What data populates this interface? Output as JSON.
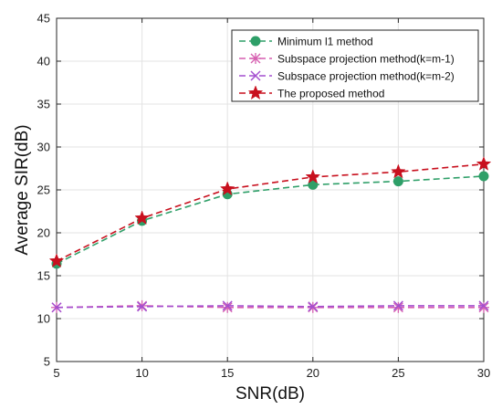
{
  "chart_data": {
    "type": "line",
    "title": "",
    "xlabel": "SNR(dB)",
    "ylabel": "Average SIR(dB)",
    "xlim": [
      5,
      30
    ],
    "ylim": [
      5,
      45
    ],
    "xticks": [
      5,
      10,
      15,
      20,
      25,
      30
    ],
    "yticks": [
      5,
      10,
      15,
      20,
      25,
      30,
      35,
      40,
      45
    ],
    "grid": true,
    "legend_position": "top-right",
    "x": [
      5,
      10,
      15,
      20,
      25,
      30
    ],
    "series": [
      {
        "name": "Minimum l1 method",
        "values": [
          16.4,
          21.4,
          24.5,
          25.6,
          26.0,
          26.6
        ],
        "color": "#2e9f68",
        "marker": "circle",
        "dash": "dashed"
      },
      {
        "name": "Subspace projection method(k=m-1)",
        "values": [
          11.3,
          11.5,
          11.3,
          11.3,
          11.3,
          11.3
        ],
        "color": "#d65fb0",
        "marker": "asterisk",
        "dash": "dashed"
      },
      {
        "name": "Subspace projection method(k=m-2)",
        "values": [
          11.3,
          11.4,
          11.5,
          11.4,
          11.5,
          11.5
        ],
        "color": "#a44fcf",
        "marker": "x",
        "dash": "dashed"
      },
      {
        "name": "The proposed method",
        "values": [
          16.7,
          21.7,
          25.1,
          26.5,
          27.1,
          28.0
        ],
        "color": "#c8101e",
        "marker": "star",
        "dash": "dashed"
      }
    ]
  }
}
